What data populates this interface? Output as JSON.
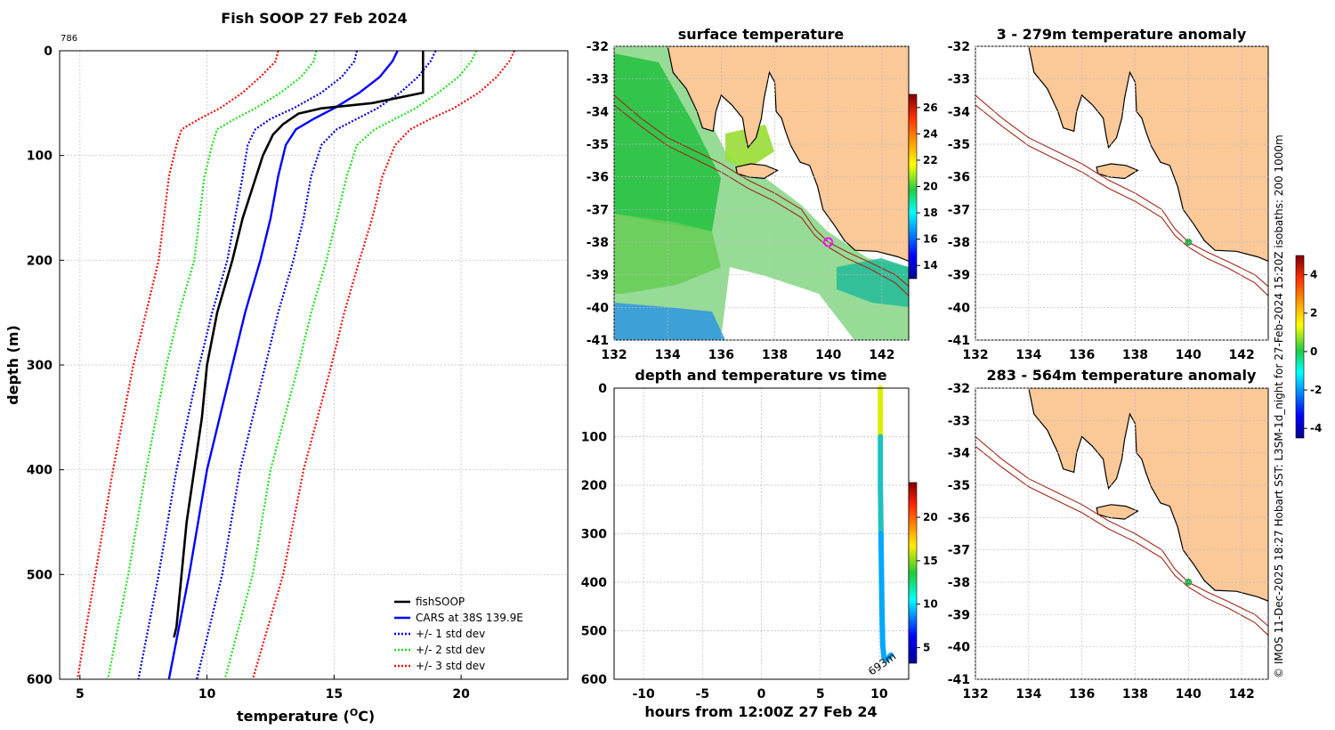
{
  "figure": {
    "side_note": "© IMOS 11-Dec-2025 18:27 Hobart SST: L3SM-1d_night for 27-Feb-2024 15:20Z isobaths: 200  1000m",
    "colors": {
      "fishsoop": "#000000",
      "cars": "#0000ff",
      "std1": "#0000dd",
      "std2": "#22dd22",
      "std3": "#ee1111",
      "land": "#fbc898",
      "isobath": "#a02818",
      "station": "#22aa44"
    }
  },
  "chart_data": [
    {
      "id": "profile",
      "type": "line",
      "title": "Fish SOOP 27 Feb 2024",
      "corner_label": "786",
      "xlabel": "temperature (",
      "xlabel_sup": "O",
      "xlabel_end": "C)",
      "ylabel": "depth (m)",
      "xlim": [
        4.2,
        24.2
      ],
      "ylim": [
        0,
        600
      ],
      "xticks": [
        5,
        10,
        15,
        20
      ],
      "yticks": [
        0,
        100,
        200,
        300,
        400,
        500,
        600
      ],
      "legend": [
        "fishSOOP",
        "CARS at 38S 139.9E",
        "+/- 1 std dev",
        "+/- 2 std dev",
        "+/- 3 std dev"
      ],
      "legend_position": "bottom-right",
      "depth": [
        0,
        20,
        40,
        50,
        55,
        60,
        70,
        80,
        100,
        130,
        160,
        200,
        250,
        300,
        350,
        400,
        450,
        500,
        550,
        560,
        600
      ],
      "fishsoop": [
        18.5,
        18.5,
        18.5,
        16.5,
        14.5,
        13.6,
        13.0,
        12.6,
        12.2,
        11.8,
        11.4,
        11.0,
        10.4,
        10.0,
        9.8,
        9.5,
        9.2,
        9.0,
        8.8,
        8.7,
        null
      ],
      "cars_depth": [
        0,
        10,
        25,
        40,
        55,
        65,
        75,
        90,
        120,
        160,
        200,
        250,
        300,
        400,
        500,
        600
      ],
      "cars": [
        17.5,
        17.3,
        16.8,
        16.0,
        15.0,
        14.2,
        13.5,
        13.1,
        12.8,
        12.5,
        12.1,
        11.5,
        11.0,
        10.0,
        9.3,
        8.5
      ],
      "std_upper_1": [
        19.0,
        18.8,
        18.3,
        17.6,
        16.7,
        15.9,
        15.1,
        14.5,
        14.1,
        13.8,
        13.4,
        12.8,
        12.3,
        11.3,
        10.6,
        9.6
      ],
      "std_lower_1": [
        15.9,
        15.8,
        15.3,
        14.5,
        13.4,
        12.5,
        11.9,
        11.6,
        11.4,
        11.1,
        10.8,
        10.2,
        9.7,
        8.8,
        8.1,
        7.3
      ],
      "std_upper_2": [
        20.6,
        20.4,
        19.9,
        19.1,
        18.2,
        17.4,
        16.6,
        15.9,
        15.5,
        15.1,
        14.7,
        14.1,
        13.6,
        12.5,
        11.8,
        10.7
      ],
      "std_lower_2": [
        14.3,
        14.2,
        13.7,
        12.9,
        11.9,
        11.1,
        10.4,
        10.2,
        9.9,
        9.7,
        9.5,
        8.9,
        8.4,
        7.6,
        6.9,
        6.1
      ],
      "std_upper_3": [
        22.1,
        21.9,
        21.4,
        20.7,
        19.7,
        18.8,
        18.0,
        17.4,
        16.9,
        16.5,
        16.0,
        15.4,
        14.9,
        13.8,
        13.0,
        11.8
      ],
      "std_lower_3": [
        12.8,
        12.7,
        12.1,
        11.4,
        10.5,
        9.7,
        9.0,
        8.8,
        8.5,
        8.3,
        8.1,
        7.6,
        7.1,
        6.3,
        5.6,
        4.9
      ]
    },
    {
      "id": "sst_map",
      "type": "heatmap",
      "title": "surface temperature",
      "xlim": [
        132,
        143
      ],
      "ylim": [
        -41,
        -32
      ],
      "xticks": [
        132,
        134,
        136,
        138,
        140,
        142
      ],
      "yticks": [
        -32,
        -33,
        -34,
        -35,
        -36,
        -37,
        -38,
        -39,
        -40,
        -41
      ],
      "colorbar_ticks": [
        14,
        16,
        18,
        20,
        22,
        24,
        26
      ],
      "station": {
        "lon": 140.0,
        "lat": -38.0
      }
    },
    {
      "id": "time_series",
      "type": "scatter",
      "title": "depth and temperature vs time",
      "xlabel": "hours from 12:00Z 27 Feb 24",
      "xlim": [
        -12.5,
        12.5
      ],
      "ylim": [
        0,
        600
      ],
      "xticks": [
        -10,
        -5,
        0,
        5,
        10
      ],
      "yticks": [
        0,
        100,
        200,
        300,
        400,
        500,
        600
      ],
      "colorbar_ticks": [
        5,
        10,
        15,
        20
      ],
      "end_label": "693m",
      "hours": [
        10.1,
        10.1,
        10.1,
        10.1,
        10.15,
        10.2,
        10.25,
        10.3,
        10.4,
        10.6,
        11.0
      ],
      "depths": [
        0,
        50,
        100,
        200,
        300,
        400,
        480,
        530,
        555,
        560,
        550
      ],
      "temps": [
        18.5,
        16.0,
        12.2,
        11.0,
        10.0,
        9.5,
        9.2,
        9.0,
        8.8,
        8.7,
        8.7
      ]
    },
    {
      "id": "anom_upper",
      "type": "heatmap",
      "title": "3 - 279m temperature anomaly",
      "xlim": [
        132,
        143
      ],
      "ylim": [
        -41,
        -32
      ],
      "xticks": [
        132,
        134,
        136,
        138,
        140,
        142
      ],
      "yticks": [
        -32,
        -33,
        -34,
        -35,
        -36,
        -37,
        -38,
        -39,
        -40,
        -41
      ],
      "colorbar_ticks": [
        -4,
        -2,
        0,
        2,
        4
      ],
      "station": {
        "lon": 140.0,
        "lat": -38.0
      }
    },
    {
      "id": "anom_lower",
      "type": "heatmap",
      "title": "283 - 564m temperature anomaly",
      "xlim": [
        132,
        143
      ],
      "ylim": [
        -41,
        -32
      ],
      "xticks": [
        132,
        134,
        136,
        138,
        140,
        142
      ],
      "yticks": [
        -32,
        -33,
        -34,
        -35,
        -36,
        -37,
        -38,
        -39,
        -40,
        -41
      ],
      "station": {
        "lon": 140.0,
        "lat": -38.0
      }
    }
  ]
}
